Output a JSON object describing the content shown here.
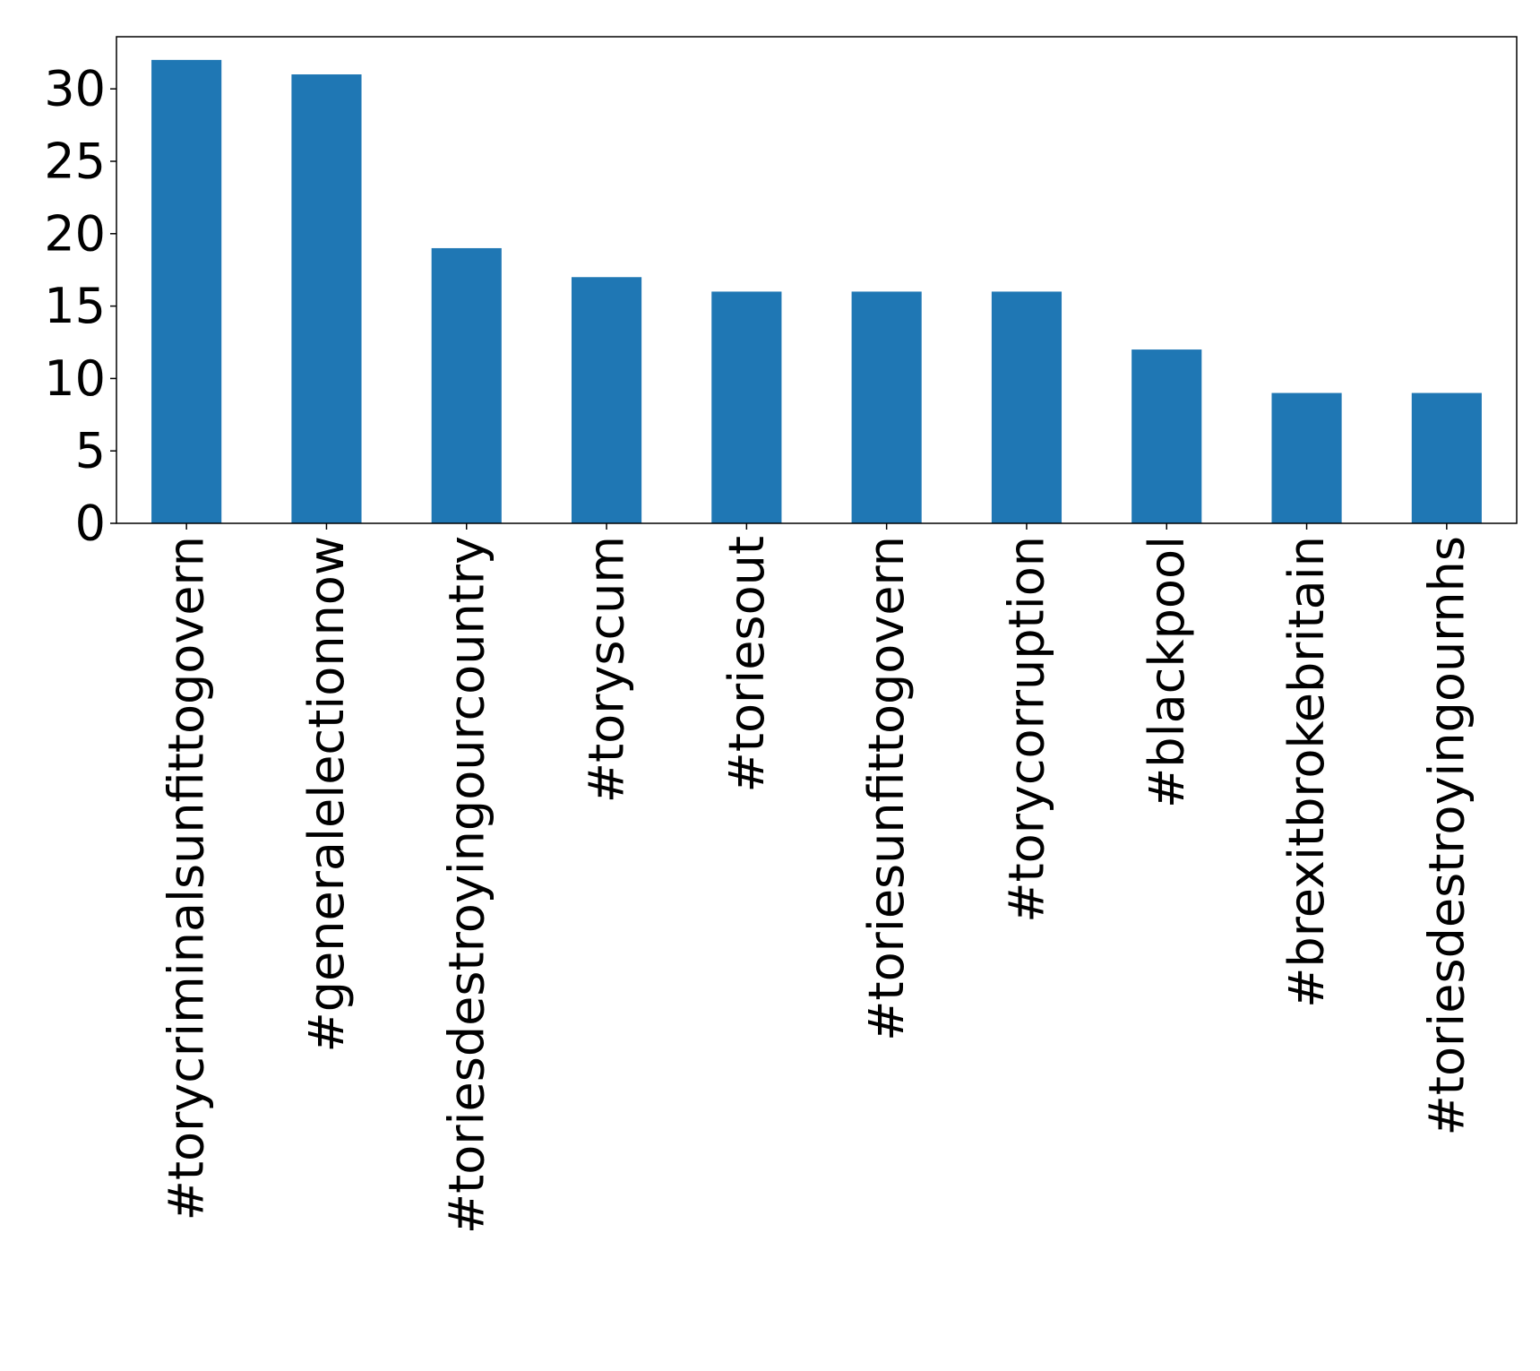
{
  "chart_data": {
    "type": "bar",
    "title": "",
    "xlabel": "",
    "ylabel": "",
    "categories": [
      "#torycriminalsunfittogovern",
      "#generalelectionnow",
      "#toriesdestroyingourcountry",
      "#toryscum",
      "#toriesout",
      "#toriesunfittogovern",
      "#torycorruption",
      "#blackpool",
      "#brexitbrokebritain",
      "#toriesdestroyingournhs"
    ],
    "values": [
      32,
      31,
      19,
      17,
      16,
      16,
      16,
      12,
      9,
      9
    ],
    "ylim": [
      0,
      33.6
    ],
    "yticks": [
      0,
      5,
      10,
      15,
      20,
      25,
      30
    ],
    "bar_color": "#1f77b4",
    "grid": false,
    "legend": "none"
  }
}
